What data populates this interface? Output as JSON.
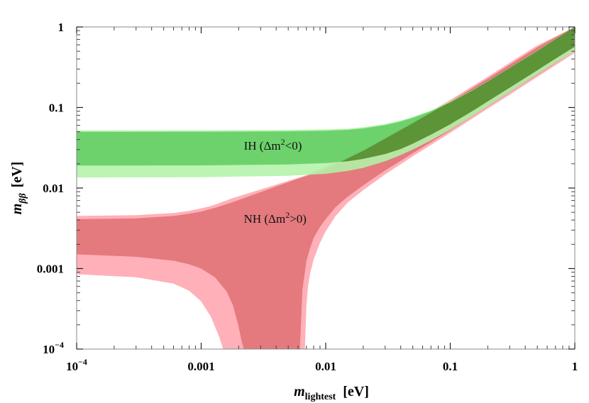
{
  "chart_data": {
    "type": "area",
    "xscale": "log",
    "yscale": "log",
    "xlim": [
      0.0001,
      1
    ],
    "ylim": [
      0.0001,
      1
    ],
    "grid": false,
    "legend": "none",
    "xlabel_main": "m",
    "xlabel_sub": "lightest",
    "xlabel_unit": "[eV]",
    "ylabel_main": "m",
    "ylabel_sub": "ββ",
    "ylabel_unit": "[eV]",
    "xticks": [
      {
        "value": 0.0001,
        "label_base": "10",
        "label_exp": "−4"
      },
      {
        "value": 0.001,
        "label": "0.001"
      },
      {
        "value": 0.01,
        "label": "0.01"
      },
      {
        "value": 0.1,
        "label": "0.1"
      },
      {
        "value": 1,
        "label": "1"
      }
    ],
    "yticks": [
      {
        "value": 0.0001,
        "label_base": "10",
        "label_exp": "−4"
      },
      {
        "value": 0.001,
        "label": "0.001"
      },
      {
        "value": 0.01,
        "label": "0.01"
      },
      {
        "value": 0.1,
        "label": "0.1"
      },
      {
        "value": 1,
        "label": "1"
      }
    ],
    "annotations": [
      {
        "text_main": "IH (Δm",
        "text_sup": "2",
        "text_tail": "<0)",
        "x": 0.0022,
        "y": 0.03
      },
      {
        "text_main": "NH (Δm",
        "text_sup": "2",
        "text_tail": ">0)",
        "x": 0.0022,
        "y": 0.0037
      }
    ],
    "series": [
      {
        "color": "#ffb0b8",
        "x": [
          0.0001,
          0.0003,
          0.0006,
          0.0008,
          0.001,
          0.0012,
          0.0014,
          0.0015,
          0.0016,
          0.0017,
          0.0068,
          0.007,
          0.0072,
          0.0075,
          0.008,
          0.009,
          0.01,
          0.012,
          0.015,
          0.02,
          0.03,
          0.05,
          0.1,
          0.2,
          0.3,
          0.5,
          1
        ],
        "upper": [
          0.0045,
          0.0046,
          0.0049,
          0.0052,
          0.0056,
          0.006,
          0.0065,
          0.0068,
          0.007,
          0.0073,
          0.0142,
          0.0145,
          0.0148,
          0.0153,
          0.016,
          0.0172,
          0.0185,
          0.021,
          0.025,
          0.031,
          0.043,
          0.067,
          0.124,
          0.24,
          0.36,
          0.59,
          1.0
        ],
        "lower": [
          0.00085,
          0.00078,
          0.00065,
          0.00053,
          0.00039,
          0.00025,
          0.00014,
          0.0001,
          0.0001,
          0.0001,
          0.0001,
          0.00035,
          0.0006,
          0.00088,
          0.0013,
          0.0021,
          0.0029,
          0.0045,
          0.0066,
          0.0094,
          0.0148,
          0.0248,
          0.0485,
          0.097,
          0.144,
          0.24,
          0.48
        ]
      },
      {
        "color": "#e47a7e",
        "x": [
          0.0001,
          0.0003,
          0.0006,
          0.0008,
          0.001,
          0.0013,
          0.0016,
          0.0018,
          0.002,
          0.0021,
          0.0022,
          0.0062,
          0.0065,
          0.007,
          0.0075,
          0.008,
          0.009,
          0.01,
          0.012,
          0.015,
          0.02,
          0.03,
          0.05,
          0.1,
          0.2,
          0.3,
          0.5,
          1
        ],
        "upper": [
          0.0041,
          0.0042,
          0.0045,
          0.0048,
          0.0051,
          0.0057,
          0.0063,
          0.0067,
          0.0071,
          0.0073,
          0.0075,
          0.0133,
          0.0136,
          0.0141,
          0.0146,
          0.015,
          0.0162,
          0.0173,
          0.0196,
          0.0234,
          0.029,
          0.041,
          0.064,
          0.118,
          0.228,
          0.34,
          0.56,
          1.0
        ],
        "lower": [
          0.0015,
          0.0014,
          0.00125,
          0.00113,
          0.001,
          0.00077,
          0.00052,
          0.00035,
          0.00019,
          0.00013,
          0.0001,
          0.0001,
          0.00055,
          0.00125,
          0.0018,
          0.0024,
          0.0033,
          0.0041,
          0.0058,
          0.0078,
          0.0108,
          0.0165,
          0.027,
          0.052,
          0.103,
          0.154,
          0.255,
          0.51
        ]
      },
      {
        "color": "#b2f3a8",
        "x": [
          0.0001,
          0.001,
          0.005,
          0.01,
          0.015,
          0.02,
          0.03,
          0.04,
          0.05,
          0.07,
          0.1,
          0.15,
          0.2,
          0.3,
          0.5,
          0.7,
          1
        ],
        "upper": [
          0.052,
          0.0521,
          0.0527,
          0.0535,
          0.0545,
          0.057,
          0.0625,
          0.069,
          0.0765,
          0.092,
          0.118,
          0.164,
          0.212,
          0.312,
          0.51,
          0.71,
          1.0
        ],
        "lower": [
          0.0135,
          0.0136,
          0.0142,
          0.015,
          0.0163,
          0.0178,
          0.0215,
          0.0257,
          0.03,
          0.039,
          0.053,
          0.078,
          0.104,
          0.155,
          0.258,
          0.36,
          0.5
        ]
      },
      {
        "color": "#62cd62",
        "x": [
          0.0001,
          0.001,
          0.005,
          0.01,
          0.015,
          0.02,
          0.03,
          0.04,
          0.05,
          0.07,
          0.1,
          0.15,
          0.2,
          0.3,
          0.5,
          0.7,
          1
        ],
        "upper": [
          0.05,
          0.0501,
          0.0506,
          0.0515,
          0.0528,
          0.055,
          0.0605,
          0.067,
          0.0745,
          0.09,
          0.116,
          0.162,
          0.21,
          0.31,
          0.505,
          0.705,
          1.0
        ],
        "lower": [
          0.019,
          0.0191,
          0.0196,
          0.0204,
          0.0215,
          0.023,
          0.0264,
          0.0305,
          0.0355,
          0.046,
          0.062,
          0.09,
          0.119,
          0.176,
          0.29,
          0.405,
          0.57
        ]
      }
    ]
  }
}
